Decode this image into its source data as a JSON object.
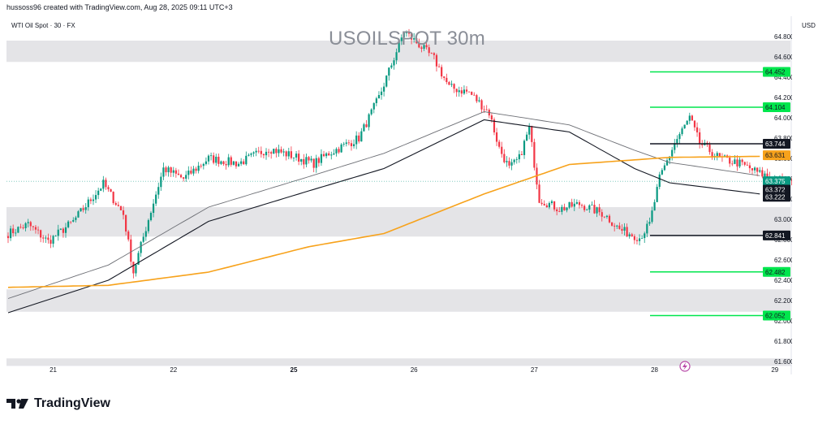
{
  "header": {
    "attribution": "hussoss96 created with TradingView.com, Aug 28, 2025 09:11 UTC+3"
  },
  "symbol": {
    "description": "WTI Oil Spot · 30 · FX",
    "title": "USOILSPOT 30m",
    "currency": "USD"
  },
  "brand": {
    "name": "TradingView"
  },
  "colors": {
    "up": "#089981",
    "down": "#f23645",
    "ma_orange": "#f7a21b",
    "band_black": "#131722",
    "band_gray": "#6d6f75",
    "zone_fill": "#e4e4e7",
    "support_green": "#00e64d",
    "label_black": "#131722"
  },
  "chart_data": {
    "type": "candlestick",
    "title": "USOILSPOT 30m",
    "ylim": [
      61.56,
      65.0
    ],
    "x_ticks": [
      "21",
      "22",
      "25",
      "26",
      "27",
      "28",
      "29"
    ],
    "y_ticks": [
      "61.600",
      "61.800",
      "62.000",
      "62.200",
      "62.400",
      "62.600",
      "62.800",
      "63.000",
      "63.200",
      "63.400",
      "63.600",
      "63.800",
      "64.000",
      "64.200",
      "64.400",
      "64.600",
      "64.800"
    ],
    "bars_per_day": 48,
    "total_bars": 335,
    "anchors": [
      [
        0,
        62.86
      ],
      [
        8,
        62.95
      ],
      [
        16,
        62.78
      ],
      [
        26,
        62.98
      ],
      [
        38,
        63.35
      ],
      [
        46,
        63.05
      ],
      [
        50,
        62.48
      ],
      [
        56,
        63.0
      ],
      [
        62,
        63.5
      ],
      [
        70,
        63.4
      ],
      [
        80,
        63.6
      ],
      [
        92,
        63.55
      ],
      [
        104,
        63.7
      ],
      [
        114,
        63.62
      ],
      [
        122,
        63.55
      ],
      [
        128,
        63.65
      ],
      [
        140,
        63.8
      ],
      [
        148,
        64.2
      ],
      [
        158,
        64.85
      ],
      [
        164,
        64.72
      ],
      [
        170,
        64.58
      ],
      [
        176,
        64.3
      ],
      [
        184,
        64.25
      ],
      [
        192,
        64.05
      ],
      [
        196,
        63.7
      ],
      [
        200,
        63.5
      ],
      [
        204,
        63.6
      ],
      [
        208,
        63.9
      ],
      [
        212,
        63.2
      ],
      [
        220,
        63.1
      ],
      [
        228,
        63.15
      ],
      [
        238,
        63.05
      ],
      [
        244,
        62.9
      ],
      [
        252,
        62.82
      ],
      [
        256,
        62.95
      ],
      [
        260,
        63.4
      ],
      [
        266,
        63.75
      ],
      [
        272,
        64.0
      ],
      [
        276,
        63.75
      ],
      [
        284,
        63.6
      ],
      [
        292,
        63.55
      ],
      [
        300,
        63.45
      ],
      [
        310,
        63.37
      ]
    ],
    "moving_average_200": [
      [
        0,
        62.33
      ],
      [
        40,
        62.35
      ],
      [
        80,
        62.48
      ],
      [
        120,
        62.73
      ],
      [
        150,
        62.86
      ],
      [
        190,
        63.25
      ],
      [
        224,
        63.54
      ],
      [
        264,
        63.61
      ],
      [
        300,
        63.62
      ]
    ],
    "band_upper": [
      [
        0,
        62.22
      ],
      [
        40,
        62.55
      ],
      [
        80,
        63.12
      ],
      [
        120,
        63.42
      ],
      [
        150,
        63.65
      ],
      [
        190,
        64.06
      ],
      [
        224,
        63.93
      ],
      [
        250,
        63.68
      ],
      [
        264,
        63.56
      ],
      [
        300,
        63.43
      ]
    ],
    "band_lower": [
      [
        0,
        62.08
      ],
      [
        40,
        62.4
      ],
      [
        80,
        62.98
      ],
      [
        120,
        63.28
      ],
      [
        150,
        63.5
      ],
      [
        190,
        63.98
      ],
      [
        224,
        63.86
      ],
      [
        250,
        63.5
      ],
      [
        264,
        63.36
      ],
      [
        300,
        63.25
      ]
    ],
    "zones": [
      {
        "from": 64.55,
        "to": 64.76
      },
      {
        "from": 62.83,
        "to": 63.12
      },
      {
        "from": 62.09,
        "to": 62.31
      },
      {
        "from": 61.56,
        "to": 61.63
      }
    ],
    "levels": [
      {
        "price": 64.452,
        "label": "64.452",
        "color": "#00e64d"
      },
      {
        "price": 64.104,
        "label": "64.104",
        "color": "#00e64d"
      },
      {
        "price": 63.744,
        "label": "63.744",
        "color": "#131722"
      },
      {
        "price": 62.841,
        "label": "62.841",
        "color": "#131722"
      },
      {
        "price": 62.482,
        "label": "62.482",
        "color": "#00e64d"
      },
      {
        "price": 62.052,
        "label": "62.052",
        "color": "#00e64d"
      }
    ],
    "price_labels": [
      {
        "price": 63.631,
        "label": "63.631",
        "bg": "#f7a21b",
        "fg": "#131722"
      },
      {
        "price": 63.375,
        "label": "63.375",
        "bg": "#089981",
        "fg": "#ffffff",
        "sub": "18:10"
      },
      {
        "price": 63.372,
        "label": "63.372",
        "bg": "#131722",
        "fg": "#ffffff"
      },
      {
        "price": 63.222,
        "label": "63.222",
        "bg": "#131722",
        "fg": "#ffffff"
      }
    ],
    "last_price": 63.375
  }
}
